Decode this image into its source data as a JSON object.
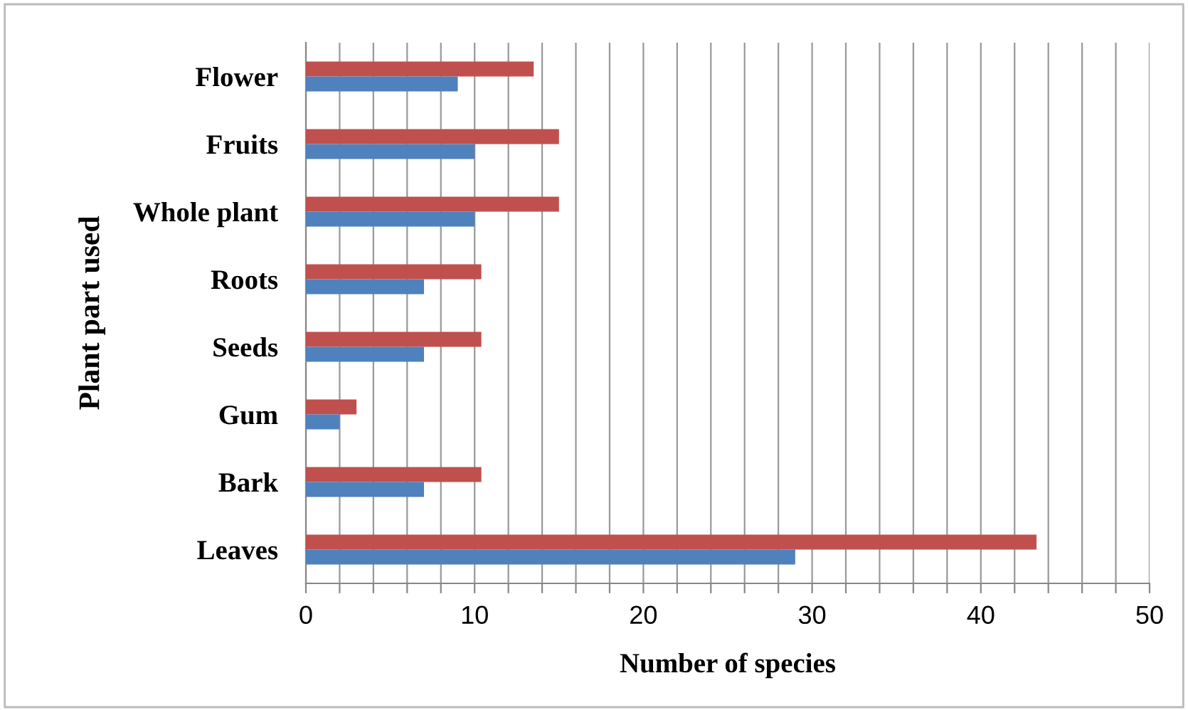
{
  "chart_data": {
    "type": "bar",
    "orientation": "horizontal",
    "xlabel": "Number of species",
    "ylabel": "Plant part used",
    "categories": [
      "Flower",
      "Fruits",
      "Whole plant",
      "Roots",
      "Seeds",
      "Gum",
      "Bark",
      "Leaves"
    ],
    "series": [
      {
        "color": "#c0504d",
        "values": [
          13.5,
          15,
          15,
          10.4,
          10.4,
          3,
          10.4,
          43.3
        ]
      },
      {
        "color": "#4f81bd",
        "values": [
          9,
          10,
          10,
          7,
          7,
          2,
          7,
          29
        ]
      }
    ],
    "xlim": [
      0,
      50
    ],
    "xticks": [
      0,
      {
        "value": 2,
        "label": null
      },
      {
        "value": 4,
        "label": null
      },
      {
        "value": 6,
        "label": null
      },
      {
        "value": 8,
        "label": null
      },
      10,
      {
        "value": 12,
        "label": null
      },
      {
        "value": 14,
        "label": null
      },
      {
        "value": 16,
        "label": null
      },
      {
        "value": 18,
        "label": null
      },
      20,
      {
        "value": 22,
        "label": null
      },
      {
        "value": 24,
        "label": null
      },
      {
        "value": 26,
        "label": null
      },
      {
        "value": 28,
        "label": null
      },
      30,
      {
        "value": 32,
        "label": null
      },
      {
        "value": 34,
        "label": null
      },
      {
        "value": 36,
        "label": null
      },
      {
        "value": 38,
        "label": null
      },
      40,
      {
        "value": 42,
        "label": null
      },
      {
        "value": 44,
        "label": null
      },
      {
        "value": 46,
        "label": null
      },
      {
        "value": 48,
        "label": null
      },
      50
    ],
    "grid": "x",
    "legend": false
  }
}
